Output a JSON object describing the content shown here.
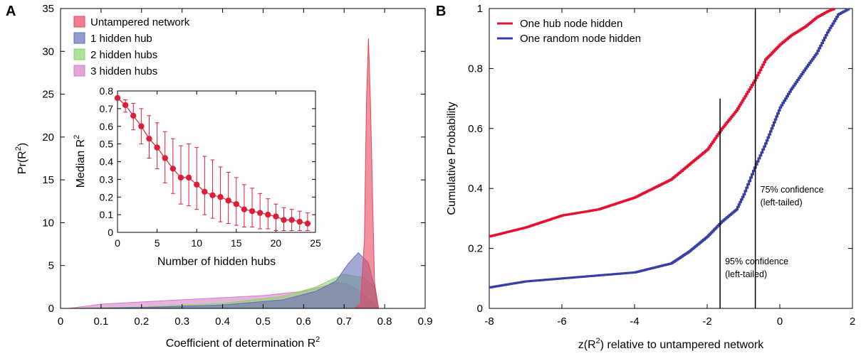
{
  "chart_data": [
    {
      "panel": "A",
      "type": "area",
      "xlabel": "Coefficient of determination R",
      "xlabel_sup": "2",
      "ylabel": "Pr(R",
      "ylabel_sup": "2",
      "ylabel_end": ")",
      "xlim": [
        0,
        0.9
      ],
      "ylim": [
        0,
        35
      ],
      "xticks": [
        "0",
        "0.1",
        "0.2",
        "0.3",
        "0.4",
        "0.5",
        "0.6",
        "0.7",
        "0.8",
        "0.9"
      ],
      "yticks": [
        "0",
        "5",
        "10",
        "15",
        "20",
        "25",
        "30",
        "35"
      ],
      "legend_position": "top-left",
      "series": [
        {
          "name": "Untampered network",
          "color": "#e8465f",
          "x": [
            0.725,
            0.74,
            0.75,
            0.755,
            0.76,
            0.765,
            0.775,
            0.785
          ],
          "y": [
            0,
            0.5,
            8,
            24,
            31.5,
            24,
            3,
            0
          ]
        },
        {
          "name": "1 hidden hub",
          "color": "#6670b8",
          "x": [
            0.05,
            0.2,
            0.4,
            0.55,
            0.63,
            0.68,
            0.71,
            0.735,
            0.76,
            0.775,
            0.785
          ],
          "y": [
            0,
            0.1,
            0.4,
            1,
            2,
            3.2,
            5.2,
            6.5,
            5.3,
            2.5,
            0
          ]
        },
        {
          "name": "2 hidden hubs",
          "color": "#8ed46c",
          "x": [
            0.02,
            0.2,
            0.4,
            0.55,
            0.63,
            0.68,
            0.7,
            0.72,
            0.75,
            0.775,
            0.785
          ],
          "y": [
            0,
            0.15,
            0.6,
            1.4,
            2.5,
            3.6,
            4,
            3.8,
            3.6,
            2.5,
            0
          ]
        },
        {
          "name": "3 hidden hubs",
          "color": "#d67fc8",
          "x": [
            0.02,
            0.1,
            0.3,
            0.5,
            0.6,
            0.65,
            0.68,
            0.71,
            0.74,
            0.77,
            0.785
          ],
          "y": [
            0,
            0.5,
            1,
            1.5,
            2,
            2.6,
            3,
            2.8,
            2,
            0.8,
            0
          ]
        }
      ],
      "inset": {
        "type": "line",
        "xlabel": "Number of hidden hubs",
        "ylabel": "Median R",
        "ylabel_sup": "2",
        "xlim": [
          0,
          25
        ],
        "ylim": [
          0,
          0.8
        ],
        "xticks": [
          "0",
          "5",
          "10",
          "15",
          "20",
          "25"
        ],
        "yticks": [
          "0",
          "0.1",
          "0.2",
          "0.3",
          "0.4",
          "0.5",
          "0.6",
          "0.7",
          "0.8"
        ],
        "color": "#dc1e38",
        "x": [
          0,
          1,
          2,
          3,
          4,
          5,
          6,
          7,
          8,
          9,
          10,
          11,
          12,
          13,
          14,
          15,
          16,
          17,
          18,
          19,
          20,
          21,
          22,
          23,
          24
        ],
        "y": [
          0.76,
          0.72,
          0.66,
          0.6,
          0.53,
          0.48,
          0.42,
          0.36,
          0.31,
          0.31,
          0.27,
          0.23,
          0.21,
          0.2,
          0.18,
          0.16,
          0.13,
          0.12,
          0.11,
          0.1,
          0.09,
          0.07,
          0.07,
          0.06,
          0.05
        ],
        "err_low": [
          0.76,
          0.68,
          0.58,
          0.5,
          0.42,
          0.36,
          0.28,
          0.22,
          0.16,
          0.15,
          0.13,
          0.1,
          0.08,
          0.06,
          0.05,
          0.04,
          0.03,
          0.03,
          0.02,
          0.02,
          0.01,
          0.01,
          0.01,
          0.01,
          0.01
        ],
        "err_high": [
          0.76,
          0.75,
          0.73,
          0.7,
          0.66,
          0.62,
          0.57,
          0.53,
          0.49,
          0.5,
          0.48,
          0.43,
          0.41,
          0.37,
          0.34,
          0.31,
          0.27,
          0.25,
          0.22,
          0.19,
          0.16,
          0.14,
          0.13,
          0.12,
          0.11
        ]
      }
    },
    {
      "panel": "B",
      "type": "line",
      "xlabel": "z(R",
      "xlabel_sup": "2",
      "xlabel_end": ") relative to untampered network",
      "ylabel": "Cumulative Probability",
      "xlim": [
        -8,
        2
      ],
      "ylim": [
        0,
        1
      ],
      "xticks": [
        "-8",
        "-6",
        "-4",
        "-2",
        "0",
        "2"
      ],
      "yticks": [
        "0",
        "0.2",
        "0.4",
        "0.6",
        "0.8",
        "1"
      ],
      "legend_position": "top-left",
      "series": [
        {
          "name": "One hub node hidden",
          "color": "#e3102f",
          "x": [
            -8,
            -7,
            -6,
            -5,
            -4,
            -3,
            -2.5,
            -2,
            -1.6,
            -1.2,
            -1,
            -0.7,
            -0.4,
            0,
            0.3,
            0.7,
            1,
            1.3,
            1.5
          ],
          "y": [
            0.24,
            0.27,
            0.31,
            0.33,
            0.37,
            0.43,
            0.48,
            0.53,
            0.6,
            0.66,
            0.7,
            0.76,
            0.83,
            0.88,
            0.91,
            0.94,
            0.97,
            0.99,
            1
          ]
        },
        {
          "name": "One random node hidden",
          "color": "#3540a0",
          "x": [
            -8,
            -7,
            -6,
            -5,
            -4,
            -3,
            -2.5,
            -2,
            -1.6,
            -1.2,
            -1,
            -0.7,
            -0.4,
            -0.2,
            0,
            0.3,
            0.7,
            1,
            1.3,
            1.6,
            1.9
          ],
          "y": [
            0.07,
            0.09,
            0.1,
            0.11,
            0.12,
            0.15,
            0.19,
            0.24,
            0.29,
            0.33,
            0.38,
            0.47,
            0.55,
            0.61,
            0.67,
            0.73,
            0.8,
            0.85,
            0.92,
            0.98,
            1
          ]
        }
      ],
      "reference_lines": [
        {
          "x": -1.645,
          "y_top": 0.7,
          "label_line1": "95% confidence",
          "label_line2": "(left-tailed)"
        },
        {
          "x": -0.674,
          "y_top": 1,
          "label_line1": "75% confidence",
          "label_line2": "(left-tailed)"
        }
      ]
    }
  ]
}
